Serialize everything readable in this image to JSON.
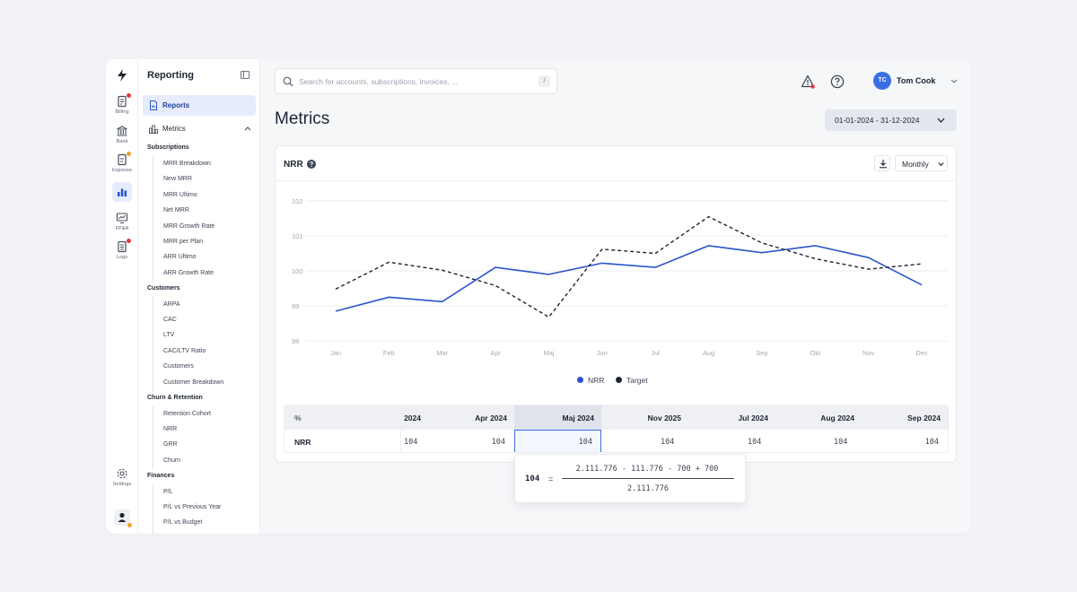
{
  "rail": {
    "items": [
      {
        "label": "Billing",
        "icon": "billing-icon"
      },
      {
        "label": "Bank",
        "icon": "bank-icon"
      },
      {
        "label": "Expense",
        "icon": "expense-icon"
      },
      {
        "label": "",
        "icon": "reporting-icon"
      },
      {
        "label": "FP&A",
        "icon": "fpa-icon"
      },
      {
        "label": "Logs",
        "icon": "logs-icon"
      },
      {
        "label": "Settings",
        "icon": "gear-icon"
      }
    ]
  },
  "sidebar": {
    "title": "Reporting",
    "reports_label": "Reports",
    "metrics_label": "Metrics",
    "groups": [
      {
        "title": "Subscriptions",
        "items": [
          "MRR Breakdown",
          "New MRR",
          "MRR Ultimo",
          "Net MRR",
          "MRR Growth Rate",
          "MRR per Plan",
          "ARR Ultimo",
          "ARR Growth Rate"
        ]
      },
      {
        "title": "Customers",
        "items": [
          "ARPA",
          "CAC",
          "LTV",
          "CAC/LTV Ratio",
          "Customers",
          "Customer Breakdown"
        ]
      },
      {
        "title": "Churn & Retention",
        "items": [
          "Retention Cohort",
          "NRR",
          "GRR",
          "Churn"
        ]
      },
      {
        "title": "Finances",
        "items": [
          "P/L",
          "P/L vs Previous Year",
          "P/L vs Budget"
        ]
      }
    ]
  },
  "header": {
    "search_placeholder": "Search for accounts, subscriptions, invoices, ...",
    "search_shortcut": "/",
    "user_initials": "TC",
    "user_name": "Tom Cook"
  },
  "page": {
    "title": "Metrics",
    "date_range": "01-01-2024 - 31-12-2024"
  },
  "card": {
    "title": "NRR",
    "period": "Monthly",
    "legend": [
      {
        "label": "NRR",
        "color": "#2b55c8"
      },
      {
        "label": "Target",
        "color": "#1d2433"
      }
    ]
  },
  "chart_data": {
    "type": "line",
    "categories": [
      "Jan",
      "Feb",
      "Mar",
      "Apr",
      "Maj",
      "Jun",
      "Jul",
      "Aug",
      "Sep",
      "Okt",
      "Nov",
      "Dec"
    ],
    "yticks": [
      98,
      99,
      100,
      101,
      102
    ],
    "ylim": [
      98,
      102
    ],
    "grid": true,
    "legend_position": "bottom",
    "series": [
      {
        "name": "NRR",
        "style": "solid",
        "color": "#2b55c8",
        "values": [
          98.85,
          99.25,
          99.12,
          100.1,
          99.9,
          100.22,
          100.1,
          100.72,
          100.52,
          100.72,
          100.38,
          99.6
        ]
      },
      {
        "name": "Target",
        "style": "dashed",
        "color": "#1d2433",
        "values": [
          99.48,
          100.25,
          100.02,
          99.58,
          98.68,
          100.62,
          100.5,
          101.55,
          100.8,
          100.35,
          100.05,
          100.2
        ]
      }
    ]
  },
  "table": {
    "corner": "%",
    "columns": [
      "2024",
      "Apr 2024",
      "Maj 2024",
      "Nov 2025",
      "Jul 2024",
      "Aug 2024",
      "Sep 2024"
    ],
    "row_label": "NRR",
    "values": [
      "104",
      "104",
      "104",
      "104",
      "104",
      "104",
      "104"
    ]
  },
  "tooltip": {
    "value": "104",
    "equals": "=",
    "numerator": "2.111.776 - 111.776 - 700 + 700",
    "denominator": "2.111.776"
  }
}
